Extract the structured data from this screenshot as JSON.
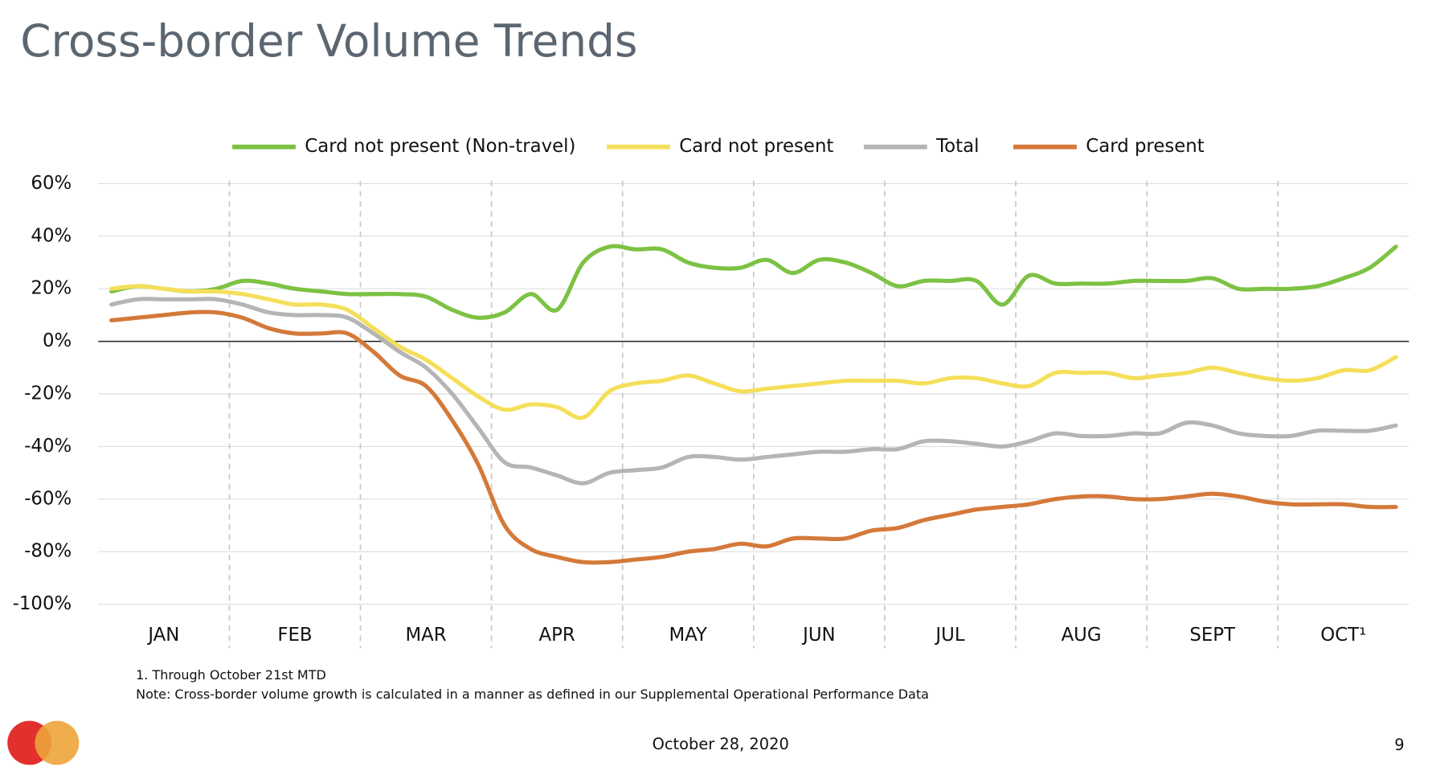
{
  "chart_data": {
    "type": "line",
    "title": "Cross-border Volume Trends",
    "categories": [
      null,
      null,
      "JAN",
      null,
      null,
      null,
      null,
      "FEB",
      null,
      null,
      null,
      null,
      "MAR",
      null,
      null,
      null,
      null,
      "APR",
      null,
      null,
      null,
      null,
      "MAY",
      null,
      null,
      null,
      null,
      "JUN",
      null,
      null,
      null,
      null,
      "JUL",
      null,
      null,
      null,
      null,
      "AUG",
      null,
      null,
      null,
      null,
      "SEPT",
      null,
      null,
      null,
      null,
      "OCT¹",
      null,
      null
    ],
    "series": [
      {
        "name": "Card not present (Non-travel)",
        "color": "#7cc243",
        "values": [
          19,
          21,
          20,
          19,
          20,
          23,
          22,
          20,
          19,
          18,
          18,
          18,
          17,
          12,
          9,
          11,
          18,
          12,
          30,
          36,
          35,
          35,
          30,
          28,
          28,
          31,
          26,
          31,
          30,
          26,
          21,
          23,
          23,
          23,
          14,
          25,
          22,
          22,
          22,
          23,
          23,
          23,
          24,
          20,
          20,
          20,
          21,
          24,
          28,
          36
        ]
      },
      {
        "name": "Card not present",
        "color": "#f5df5a",
        "values": [
          20,
          21,
          20,
          19,
          19,
          18,
          16,
          14,
          14,
          12,
          5,
          -2,
          -7,
          -14,
          -21,
          -26,
          -24,
          -25,
          -29,
          -19,
          -16,
          -15,
          -13,
          -16,
          -19,
          -18,
          -17,
          -16,
          -15,
          -15,
          -15,
          -16,
          -14,
          -14,
          -16,
          -17,
          -12,
          -12,
          -12,
          -14,
          -13,
          -12,
          -10,
          -12,
          -14,
          -15,
          -14,
          -11,
          -11,
          -6
        ]
      },
      {
        "name": "Total",
        "color": "#b5b5b5",
        "values": [
          14,
          16,
          16,
          16,
          16,
          14,
          11,
          10,
          10,
          9,
          3,
          -4,
          -10,
          -20,
          -33,
          -46,
          -48,
          -51,
          -54,
          -50,
          -49,
          -48,
          -44,
          -44,
          -45,
          -44,
          -43,
          -42,
          -42,
          -41,
          -41,
          -38,
          -38,
          -39,
          -40,
          -38,
          -35,
          -36,
          -36,
          -35,
          -35,
          -31,
          -32,
          -35,
          -36,
          -36,
          -34,
          -34,
          -34,
          -32
        ]
      },
      {
        "name": "Card present",
        "color": "#d4793a",
        "values": [
          8,
          9,
          10,
          11,
          11,
          9,
          5,
          3,
          3,
          3,
          -4,
          -13,
          -17,
          -30,
          -47,
          -70,
          -79,
          -82,
          -84,
          -84,
          -83,
          -82,
          -80,
          -79,
          -77,
          -78,
          -75,
          -75,
          -75,
          -72,
          -71,
          -68,
          -66,
          -64,
          -63,
          -62,
          -60,
          -59,
          -59,
          -60,
          -60,
          -59,
          -58,
          -59,
          -61,
          -62,
          -62,
          -62,
          -63,
          -63
        ]
      }
    ],
    "ylim": [
      -100,
      60
    ],
    "yticks": [
      {
        "value": -100,
        "label": "-100%"
      },
      {
        "value": -80,
        "label": "-80%"
      },
      {
        "value": -60,
        "label": "-60%"
      },
      {
        "value": -40,
        "label": "-40%"
      },
      {
        "value": -20,
        "label": "-20%"
      },
      {
        "value": 0,
        "label": "0%"
      },
      {
        "value": 20,
        "label": "20%"
      },
      {
        "value": 40,
        "label": "40%"
      },
      {
        "value": 60,
        "label": "60%"
      }
    ],
    "grid": true,
    "legend": "top",
    "footnotes": [
      "1.  Through October 21st MTD",
      "Note: Cross-border volume growth is calculated in a manner as defined in our Supplemental Operational Performance Data"
    ],
    "date": "October 28, 2020",
    "page_number": "9"
  }
}
